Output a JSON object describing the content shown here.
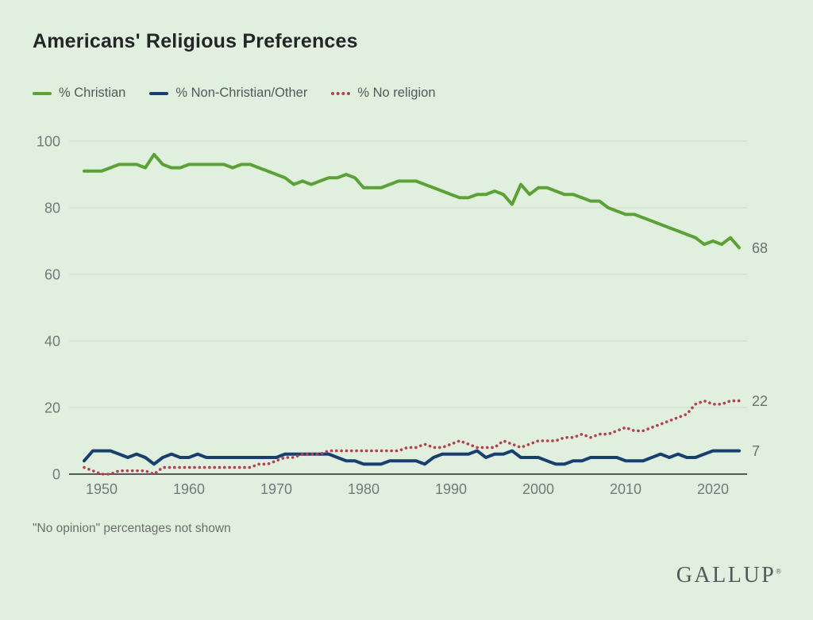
{
  "title": "Americans' Religious Preferences",
  "legend": [
    {
      "label": "% Christian",
      "color": "#5ba236",
      "style": "solid"
    },
    {
      "label": "% Non-Christian/Other",
      "color": "#17406f",
      "style": "solid"
    },
    {
      "label": "% No religion",
      "color": "#b5404e",
      "style": "dotted"
    }
  ],
  "footnote": "\"No opinion\" percentages not shown",
  "logo": {
    "text": "GALLUP",
    "mark": "®"
  },
  "colors": {
    "background": "#e1efde",
    "grid": "#d2d8cc",
    "axis": "#55575a",
    "tick_text": "#75787a",
    "end_label_text": "#6c6f71",
    "christian": "#5ba236",
    "non_christian": "#17406f",
    "no_religion": "#b5404e"
  },
  "chart_data": {
    "type": "line",
    "title": "Americans' Religious Preferences",
    "xlabel": "",
    "ylabel": "",
    "xlim": [
      1948,
      2024
    ],
    "ylim": [
      0,
      100
    ],
    "grid": "horizontal",
    "legend_position": "top",
    "xticks": [
      1950,
      1960,
      1970,
      1980,
      1990,
      2000,
      2010,
      2020
    ],
    "yticks": [
      0,
      20,
      40,
      60,
      80,
      100
    ],
    "x": [
      1948,
      1949,
      1950,
      1951,
      1952,
      1953,
      1954,
      1955,
      1956,
      1957,
      1958,
      1959,
      1960,
      1961,
      1962,
      1963,
      1964,
      1965,
      1966,
      1967,
      1968,
      1969,
      1970,
      1971,
      1972,
      1973,
      1974,
      1975,
      1976,
      1977,
      1978,
      1979,
      1980,
      1981,
      1982,
      1983,
      1984,
      1985,
      1986,
      1987,
      1988,
      1989,
      1990,
      1991,
      1992,
      1993,
      1994,
      1995,
      1996,
      1997,
      1998,
      1999,
      2000,
      2001,
      2002,
      2003,
      2004,
      2005,
      2006,
      2007,
      2008,
      2009,
      2010,
      2011,
      2012,
      2013,
      2014,
      2015,
      2016,
      2017,
      2018,
      2019,
      2020,
      2021,
      2022,
      2023
    ],
    "series": [
      {
        "name": "% Christian",
        "style": "solid",
        "color": "#5ba236",
        "values": [
          91,
          91,
          91,
          92,
          93,
          93,
          93,
          92,
          96,
          93,
          92,
          92,
          93,
          93,
          93,
          93,
          93,
          92,
          93,
          93,
          92,
          91,
          90,
          89,
          87,
          88,
          87,
          88,
          89,
          89,
          90,
          89,
          86,
          86,
          86,
          87,
          88,
          88,
          88,
          87,
          86,
          85,
          84,
          83,
          83,
          84,
          84,
          85,
          84,
          81,
          87,
          84,
          86,
          86,
          85,
          84,
          84,
          83,
          82,
          82,
          80,
          79,
          78,
          78,
          77,
          76,
          75,
          74,
          73,
          72,
          71,
          69,
          70,
          69,
          71,
          68
        ]
      },
      {
        "name": "% Non-Christian/Other",
        "style": "solid",
        "color": "#17406f",
        "values": [
          4,
          7,
          7,
          7,
          6,
          5,
          6,
          5,
          3,
          5,
          6,
          5,
          5,
          6,
          5,
          5,
          5,
          5,
          5,
          5,
          5,
          5,
          5,
          6,
          6,
          6,
          6,
          6,
          6,
          5,
          4,
          4,
          3,
          3,
          3,
          4,
          4,
          4,
          4,
          3,
          5,
          6,
          6,
          6,
          6,
          7,
          5,
          6,
          6,
          7,
          5,
          5,
          5,
          4,
          3,
          3,
          4,
          4,
          5,
          5,
          5,
          5,
          4,
          4,
          4,
          5,
          6,
          5,
          6,
          5,
          5,
          6,
          7,
          7,
          7,
          7
        ]
      },
      {
        "name": "% No religion",
        "style": "dotted",
        "color": "#b5404e",
        "values": [
          2,
          1,
          0,
          0,
          1,
          1,
          1,
          1,
          0,
          2,
          2,
          2,
          2,
          2,
          2,
          2,
          2,
          2,
          2,
          2,
          3,
          3,
          4,
          5,
          5,
          6,
          6,
          6,
          7,
          7,
          7,
          7,
          7,
          7,
          7,
          7,
          7,
          8,
          8,
          9,
          8,
          8,
          9,
          10,
          9,
          8,
          8,
          8,
          10,
          9,
          8,
          9,
          10,
          10,
          10,
          11,
          11,
          12,
          11,
          12,
          12,
          13,
          14,
          13,
          13,
          14,
          15,
          16,
          17,
          18,
          21,
          22,
          21,
          21,
          22,
          22
        ]
      }
    ],
    "end_labels": [
      {
        "text": "68",
        "value": 68
      },
      {
        "text": "22",
        "value": 22
      },
      {
        "text": "7",
        "value": 7
      }
    ]
  }
}
